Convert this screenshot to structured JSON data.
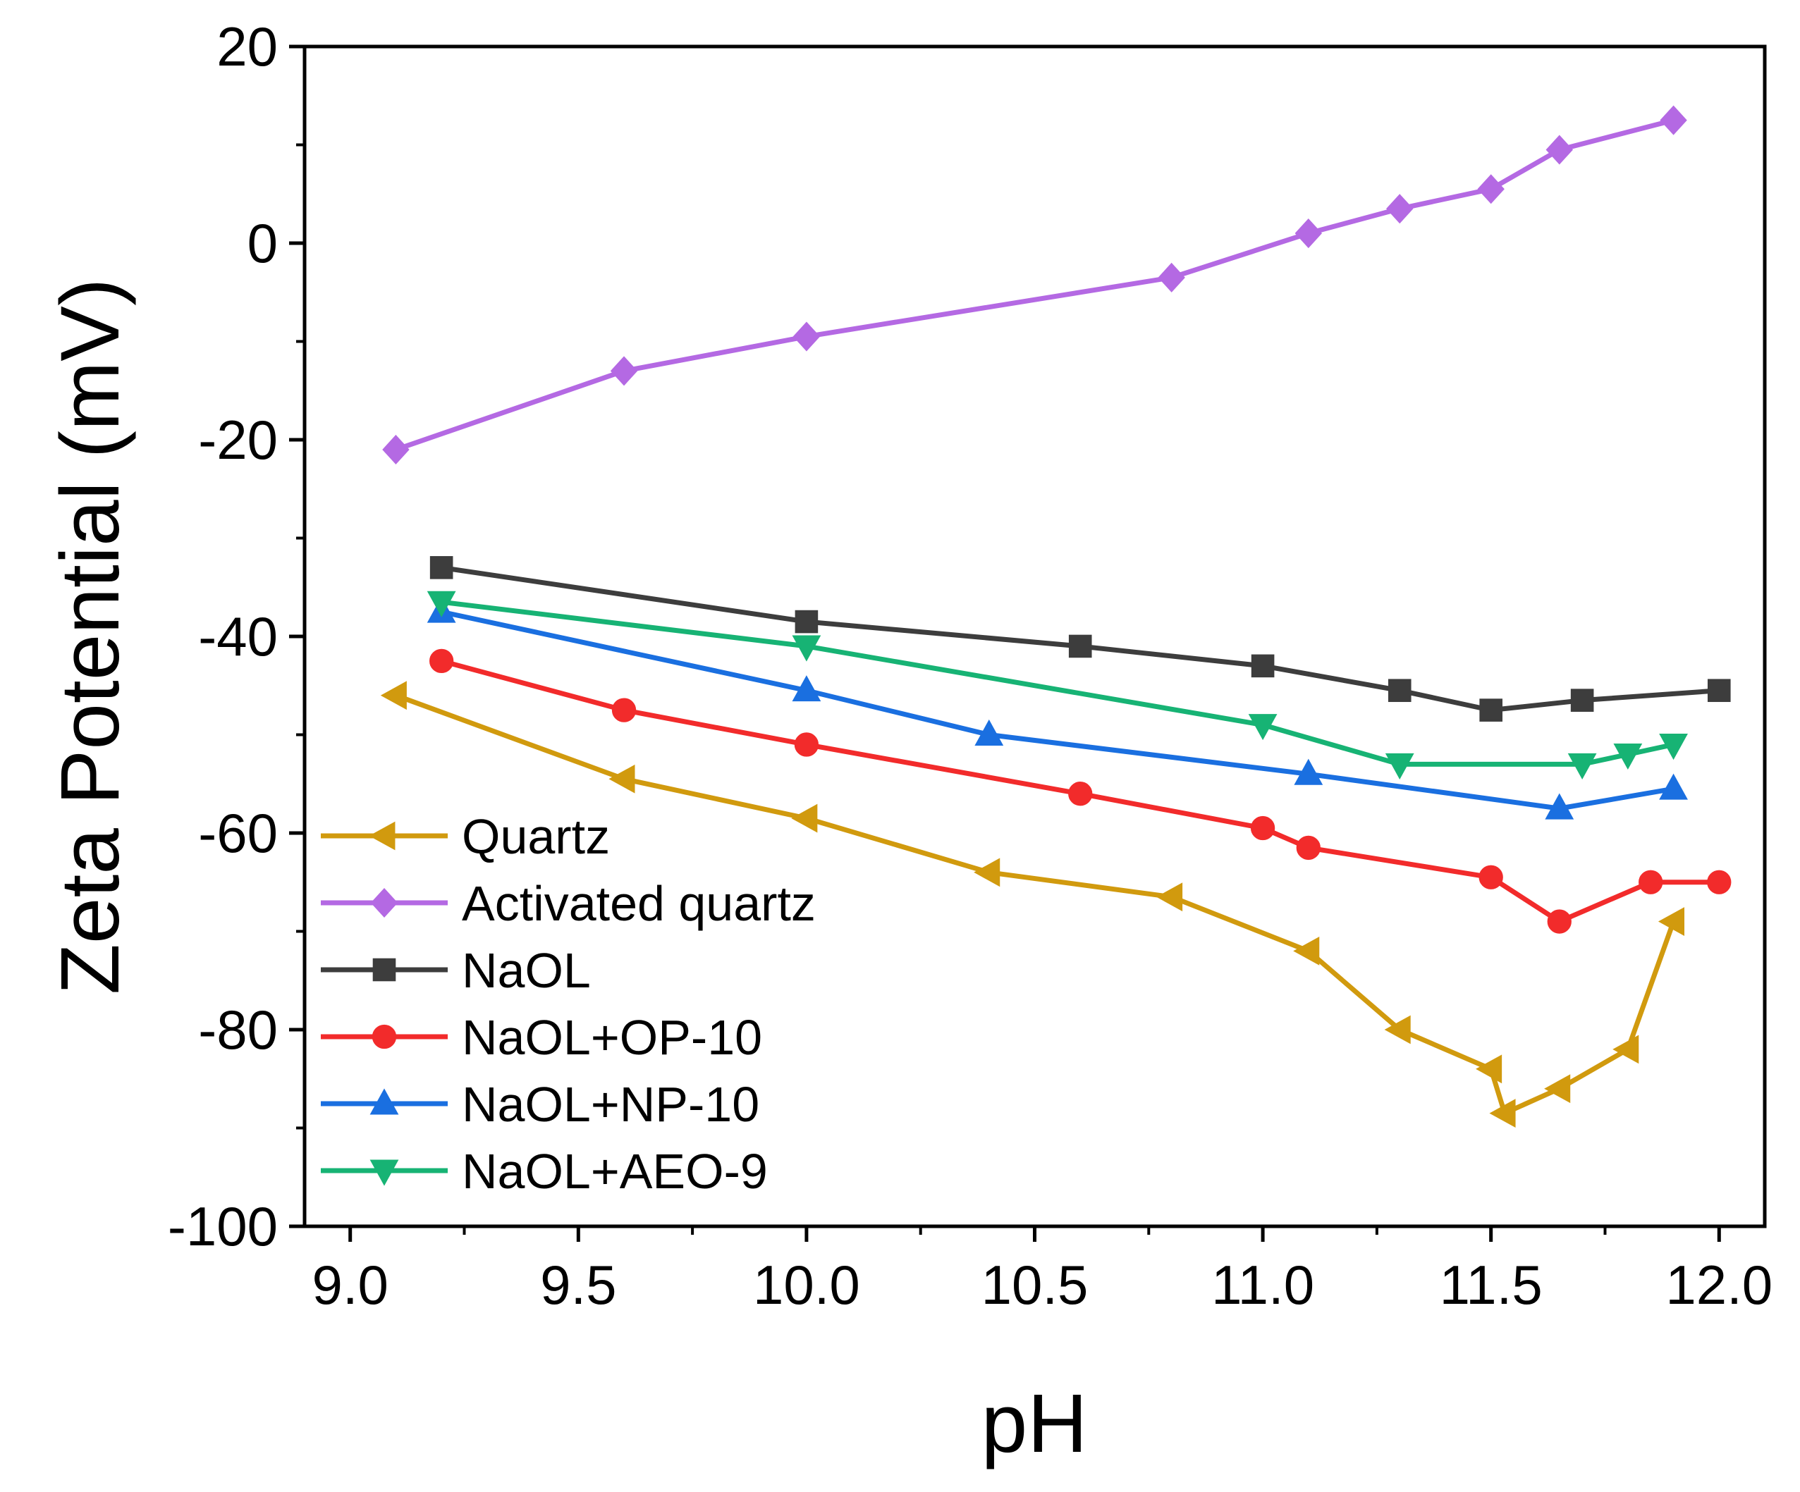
{
  "chart_data": {
    "type": "line",
    "title": "",
    "xlabel": "pH",
    "ylabel": "Zeta Potential (mV)",
    "xlim": [
      8.9,
      12.1
    ],
    "ylim": [
      -100,
      20
    ],
    "xticks": [
      "9.0",
      "9.5",
      "10.0",
      "10.5",
      "11.0",
      "11.5",
      "12.0"
    ],
    "yticks": [
      "20",
      "0",
      "-20",
      "-40",
      "-60",
      "-80",
      "-100"
    ],
    "grid": false,
    "legend_position": "lower-left",
    "series": [
      {
        "name": "Quartz",
        "color": "#d19a0e",
        "marker": "triangle-left",
        "x": [
          9.1,
          9.6,
          10.0,
          10.4,
          10.8,
          11.1,
          11.3,
          11.5,
          11.53,
          11.65,
          11.8,
          11.9
        ],
        "y": [
          -46,
          -54.5,
          -58.5,
          -64,
          -66.5,
          -72,
          -80,
          -84,
          -88.5,
          -86,
          -82,
          -69
        ]
      },
      {
        "name": "Activated quartz",
        "color": "#b469e3",
        "marker": "diamond",
        "x": [
          9.1,
          9.6,
          10.0,
          10.8,
          11.1,
          11.3,
          11.5,
          11.65,
          11.9
        ],
        "y": [
          -21,
          -13,
          -9.5,
          -3.5,
          1,
          3.5,
          5.5,
          9.5,
          12.5
        ]
      },
      {
        "name": "NaOL",
        "color": "#3d3d3d",
        "marker": "square",
        "x": [
          9.2,
          10.0,
          10.6,
          11.0,
          11.3,
          11.5,
          11.7,
          12.0
        ],
        "y": [
          -33,
          -38.5,
          -41,
          -43,
          -45.5,
          -47.5,
          -46.5,
          -45.5
        ]
      },
      {
        "name": "NaOL+OP-10",
        "color": "#f22b2b",
        "marker": "circle",
        "x": [
          9.2,
          9.6,
          10.0,
          10.6,
          11.0,
          11.1,
          11.5,
          11.65,
          11.85,
          12.0
        ],
        "y": [
          -42.5,
          -47.5,
          -51,
          -56,
          -59.5,
          -61.5,
          -64.5,
          -69,
          -65,
          -65
        ]
      },
      {
        "name": "NaOL+NP-10",
        "color": "#1a6fe0",
        "marker": "triangle-up",
        "x": [
          9.2,
          10.0,
          10.4,
          11.1,
          11.65,
          11.9
        ],
        "y": [
          -37.5,
          -45.5,
          -50,
          -54,
          -57.5,
          -55.5
        ]
      },
      {
        "name": "NaOL+AEO-9",
        "color": "#17b374",
        "marker": "triangle-down",
        "x": [
          9.2,
          10.0,
          11.0,
          11.3,
          11.7,
          11.8,
          11.9
        ],
        "y": [
          -36.5,
          -41,
          -49,
          -53,
          -53,
          -52,
          -51
        ]
      }
    ]
  }
}
